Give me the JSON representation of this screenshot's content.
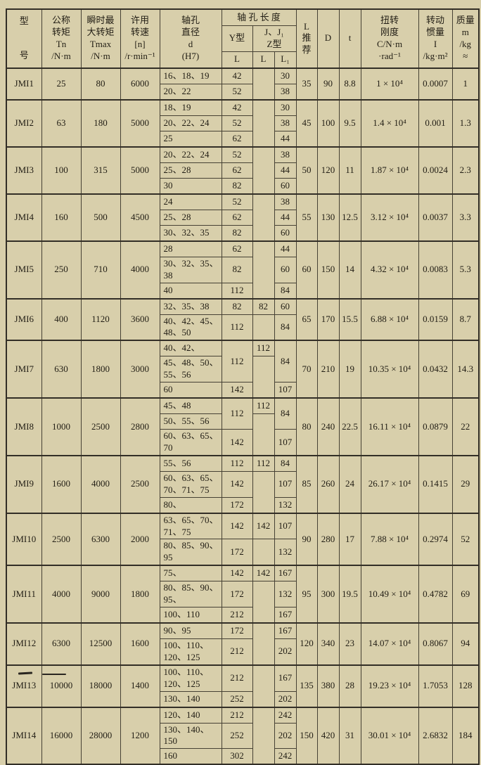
{
  "colors": {
    "paper": "#d8cfab",
    "line": "#464134",
    "line_heavy": "#322e26",
    "text": "#211d14"
  },
  "header": {
    "model_top": "型",
    "model_bottom": "号",
    "nominal_torque": "公称\n转矩\nTn\n/N·m",
    "max_torque": "瞬时最\n大转矩\nTmax\n/N·m",
    "speed": "许用\n转速\n[n]\n/r·min⁻¹",
    "bore_diameter": "轴孔\n直径\nd\n(H7)",
    "bore_length_group": "轴 孔 长 度",
    "y_type": "Y型",
    "jz_type": "J、J₁\nZ型",
    "L": "L",
    "L1": "L₁",
    "l_recommended": "L\n推\n荐",
    "D": "D",
    "t": "t",
    "stiffness": "扭转\n刚度\nC/N·m\n·rad⁻¹",
    "inertia": "转动\n惯量\nI\n/kg·m²",
    "mass": "质量\nm\n/kg\n≈"
  },
  "table": {
    "groups": [
      {
        "model": "JMI1",
        "tn": "25",
        "tmax": "80",
        "speed": "6000",
        "j": "",
        "rows": [
          {
            "d": "16、18、19",
            "y": "42",
            "l1": "30"
          },
          {
            "d": "20、22",
            "y": "52",
            "l1": "38"
          }
        ],
        "lrec": "35",
        "D": "90",
        "t": "8.8",
        "stiff": "1 × 10⁴",
        "inertia": "0.0007",
        "mass": "1"
      },
      {
        "model": "JMI2",
        "tn": "63",
        "tmax": "180",
        "speed": "5000",
        "j": "",
        "rows": [
          {
            "d": "18、19",
            "y": "42",
            "l1": "30"
          },
          {
            "d": "20、22、24",
            "y": "52",
            "l1": "38"
          },
          {
            "d": "25",
            "y": "62",
            "l1": "44"
          }
        ],
        "lrec": "45",
        "D": "100",
        "t": "9.5",
        "stiff": "1.4 × 10⁴",
        "inertia": "0.001",
        "mass": "1.3"
      },
      {
        "model": "JMI3",
        "tn": "100",
        "tmax": "315",
        "speed": "5000",
        "j": "",
        "rows": [
          {
            "d": "20、22、24",
            "y": "52",
            "l1": "38"
          },
          {
            "d": "25、28",
            "y": "62",
            "l1": "44"
          },
          {
            "d": "30",
            "y": "82",
            "l1": "60"
          }
        ],
        "lrec": "50",
        "D": "120",
        "t": "11",
        "stiff": "1.87 × 10⁴",
        "inertia": "0.0024",
        "mass": "2.3"
      },
      {
        "model": "JMI4",
        "tn": "160",
        "tmax": "500",
        "speed": "4500",
        "j": "",
        "rows": [
          {
            "d": "24",
            "y": "52",
            "l1": "38"
          },
          {
            "d": "25、28",
            "y": "62",
            "l1": "44"
          },
          {
            "d": "30、32、35",
            "y": "82",
            "l1": "60"
          }
        ],
        "lrec": "55",
        "D": "130",
        "t": "12.5",
        "stiff": "3.12 × 10⁴",
        "inertia": "0.0037",
        "mass": "3.3"
      },
      {
        "model": "JMI5",
        "tn": "250",
        "tmax": "710",
        "speed": "4000",
        "j": "",
        "rows": [
          {
            "d": "28",
            "y": "62",
            "l1": "44"
          },
          {
            "d": "30、32、35、38",
            "y": "82",
            "l1": "60"
          },
          {
            "d": "40",
            "y": "112",
            "l1": "84"
          }
        ],
        "lrec": "60",
        "D": "150",
        "t": "14",
        "stiff": "4.32 × 10⁴",
        "inertia": "0.0083",
        "mass": "5.3"
      },
      {
        "model": "JMI6",
        "tn": "400",
        "tmax": "1120",
        "speed": "3600",
        "j": "82",
        "rows": [
          {
            "d": "32、35、38",
            "y": "82",
            "l1": "60"
          },
          {
            "d": "40、42、45、48、50",
            "y": "112",
            "l1": "84"
          }
        ],
        "lrec": "65",
        "D": "170",
        "t": "15.5",
        "stiff": "6.88 × 10⁴",
        "inertia": "0.0159",
        "mass": "8.7"
      },
      {
        "model": "JMI7",
        "tn": "630",
        "tmax": "1800",
        "speed": "3000",
        "j": "112",
        "rows": [
          {
            "d": "40、42、",
            "y": {
              "v": "112",
              "span": 2
            },
            "l1": {
              "v": "84",
              "span": 2
            }
          },
          {
            "d": "45、48、50、55、56"
          },
          {
            "d": "60",
            "y": "142",
            "l1": "107"
          }
        ],
        "lrec": "70",
        "D": "210",
        "t": "19",
        "stiff": "10.35 × 10⁴",
        "inertia": "0.0432",
        "mass": "14.3"
      },
      {
        "model": "JMI8",
        "tn": "1000",
        "tmax": "2500",
        "speed": "2800",
        "j": "112",
        "rows": [
          {
            "d": "45、48",
            "y": {
              "v": "112",
              "span": 2
            },
            "l1": {
              "v": "84",
              "span": 2
            }
          },
          {
            "d": "50、55、56"
          },
          {
            "d": "60、63、65、70",
            "y": "142",
            "l1": "107"
          }
        ],
        "lrec": "80",
        "D": "240",
        "t": "22.5",
        "stiff": "16.11 × 10⁴",
        "inertia": "0.0879",
        "mass": "22"
      },
      {
        "model": "JMI9",
        "tn": "1600",
        "tmax": "4000",
        "speed": "2500",
        "j": "112",
        "rows": [
          {
            "d": "55、56",
            "y": "112",
            "l1": "84"
          },
          {
            "d": "60、63、65、70、71、75",
            "y": "142",
            "l1": "107"
          },
          {
            "d": "80、",
            "y": "172",
            "l1": "132"
          }
        ],
        "lrec": "85",
        "D": "260",
        "t": "24",
        "stiff": "26.17 × 10⁴",
        "inertia": "0.1415",
        "mass": "29"
      },
      {
        "model": "JMI10",
        "tn": "2500",
        "tmax": "6300",
        "speed": "2000",
        "j": "142",
        "rows": [
          {
            "d": "63、65、70、71、75",
            "y": "142",
            "l1": "107"
          },
          {
            "d": "80、85、90、95",
            "y": "172",
            "l1": "132"
          }
        ],
        "lrec": "90",
        "D": "280",
        "t": "17",
        "stiff": "7.88 × 10⁴",
        "inertia": "0.2974",
        "mass": "52"
      },
      {
        "model": "JMI11",
        "tn": "4000",
        "tmax": "9000",
        "speed": "1800",
        "j": "142",
        "rows": [
          {
            "d": "75、",
            "y": "142",
            "l1": "167"
          },
          {
            "d": "80、85、90、95、",
            "y": "172",
            "l1": "132"
          },
          {
            "d": "100、110",
            "y": "212",
            "l1": "167"
          }
        ],
        "lrec": "95",
        "D": "300",
        "t": "19.5",
        "stiff": "10.49 × 10⁴",
        "inertia": "0.4782",
        "mass": "69"
      },
      {
        "model": "JMI12",
        "tn": "6300",
        "tmax": "12500",
        "speed": "1600",
        "j": "",
        "rows": [
          {
            "d": "90、95",
            "y": "172",
            "l1": "167"
          },
          {
            "d": "100、110、120、125",
            "y": "212",
            "l1": "202"
          }
        ],
        "lrec": "120",
        "D": "340",
        "t": "23",
        "stiff": "14.07 × 10⁴",
        "inertia": "0.8067",
        "mass": "94"
      },
      {
        "model": "JMI13",
        "tn": "10000",
        "tmax": "18000",
        "speed": "1400",
        "j": "",
        "rows": [
          {
            "d": "100、110、120、125",
            "y": "212",
            "l1": "167"
          },
          {
            "d": "130、140",
            "y": "252",
            "l1": "202"
          }
        ],
        "lrec": "135",
        "D": "380",
        "t": "28",
        "stiff": "19.23 × 10⁴",
        "inertia": "1.7053",
        "mass": "128"
      },
      {
        "model": "JMI14",
        "tn": "16000",
        "tmax": "28000",
        "speed": "1200",
        "j": "",
        "rows": [
          {
            "d": "120、140",
            "y": "212",
            "l1": "242"
          },
          {
            "d": "130、140、150",
            "y": "252",
            "l1": "202"
          },
          {
            "d": "160",
            "y": "302",
            "l1": "242"
          }
        ],
        "lrec": "150",
        "D": "420",
        "t": "31",
        "stiff": "30.01 × 10⁴",
        "inertia": "2.6832",
        "mass": "184"
      }
    ]
  }
}
